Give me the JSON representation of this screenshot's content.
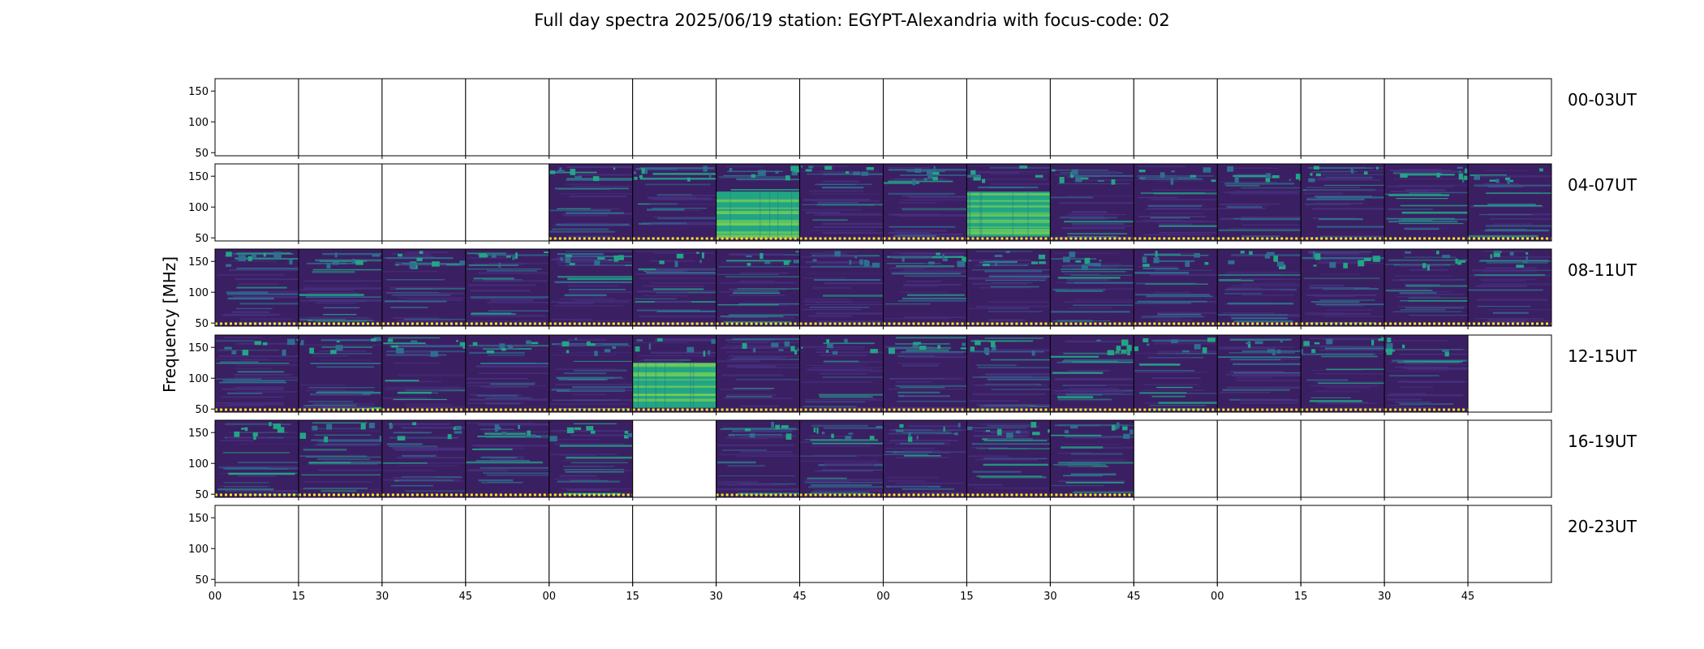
{
  "chart_data": {
    "type": "heatmap",
    "title": "Full day spectra 2025/06/19 station: EGYPT-Alexandria with focus-code: 02",
    "ylabel": "Frequency [MHz]",
    "y_ticks": [
      "50",
      "100",
      "150"
    ],
    "ylim": [
      45,
      170
    ],
    "x_ticks": [
      "00",
      "15",
      "30",
      "45",
      "00",
      "15",
      "30",
      "45",
      "00",
      "15",
      "30",
      "45",
      "00",
      "15",
      "30",
      "45"
    ],
    "colors": {
      "empty": "#ffffff",
      "background": "#3b1f63",
      "low": "#46317e",
      "mid": "#2f6e8e",
      "high": "#22a584",
      "peak": "#7ad151",
      "marker": "#fde725"
    },
    "rows": [
      {
        "label": "00-03UT",
        "panels": [
          0,
          0,
          0,
          0,
          0,
          0,
          0,
          0,
          0,
          0,
          0,
          0,
          0,
          0,
          0,
          0
        ]
      },
      {
        "label": "04-07UT",
        "panels": [
          0,
          0,
          0,
          0,
          1,
          1,
          2,
          1,
          1,
          2,
          1,
          1,
          1,
          1,
          1,
          1
        ]
      },
      {
        "label": "08-11UT",
        "panels": [
          1,
          1,
          1,
          1,
          1,
          1,
          1,
          1,
          1,
          1,
          1,
          1,
          1,
          1,
          1,
          1
        ]
      },
      {
        "label": "12-15UT",
        "panels": [
          1,
          1,
          1,
          1,
          1,
          2,
          1,
          1,
          1,
          1,
          1,
          1,
          1,
          1,
          1,
          0
        ]
      },
      {
        "label": "16-19UT",
        "panels": [
          1,
          1,
          1,
          1,
          1,
          0,
          1,
          1,
          1,
          1,
          1,
          0,
          0,
          0,
          0,
          0
        ]
      },
      {
        "label": "20-23UT",
        "panels": [
          0,
          0,
          0,
          0,
          0,
          0,
          0,
          0,
          0,
          0,
          0,
          0,
          0,
          0,
          0,
          0
        ]
      }
    ],
    "legend": "none"
  }
}
